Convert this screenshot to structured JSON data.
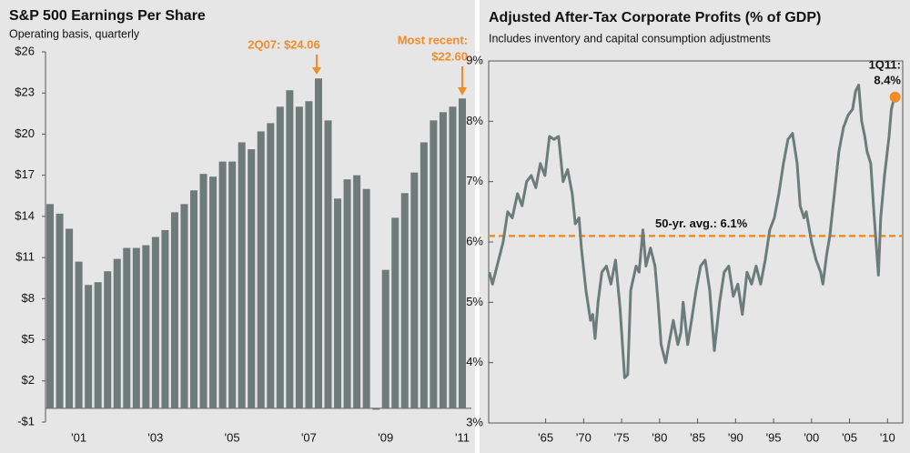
{
  "chart_data": [
    {
      "type": "bar",
      "title": "S&P 500 Earnings Per Share",
      "subtitle": "Operating basis, quarterly",
      "annotations": [
        "2Q07: $24.06",
        "Most recent:",
        "$22.60"
      ],
      "categories": [
        null,
        null,
        null,
        "'01",
        null,
        null,
        null,
        null,
        null,
        null,
        null,
        "'03",
        null,
        null,
        null,
        null,
        null,
        null,
        null,
        "'05",
        null,
        null,
        null,
        null,
        null,
        null,
        null,
        "'07",
        null,
        null,
        null,
        null,
        null,
        null,
        null,
        "'09",
        null,
        null,
        null,
        null,
        null,
        null,
        null,
        "'11"
      ],
      "values": [
        14.9,
        14.2,
        13.1,
        10.7,
        9.0,
        9.2,
        10.0,
        10.9,
        11.7,
        11.7,
        11.9,
        12.5,
        13.0,
        14.3,
        14.9,
        15.9,
        17.1,
        16.9,
        18.0,
        18.0,
        19.4,
        18.9,
        20.2,
        20.8,
        22.0,
        23.2,
        22.0,
        22.4,
        24.06,
        21.0,
        15.3,
        16.7,
        17.0,
        16.0,
        -0.1,
        10.1,
        13.9,
        15.7,
        17.2,
        19.4,
        21.0,
        21.6,
        22.0,
        22.6
      ],
      "color": "#6e7b79",
      "ylim": [
        -1,
        26
      ],
      "yticks": [
        {
          "value": -1,
          "label": "-$1"
        },
        {
          "value": 2,
          "label": "$2"
        },
        {
          "value": 5,
          "label": "$5"
        },
        {
          "value": 8,
          "label": "$8"
        },
        {
          "value": 11,
          "label": "$11"
        },
        {
          "value": 14,
          "label": "$14"
        },
        {
          "value": 17,
          "label": "$17"
        },
        {
          "value": 20,
          "label": "$20"
        },
        {
          "value": 23,
          "label": "$23"
        },
        {
          "value": 26,
          "label": "$26"
        }
      ]
    },
    {
      "type": "line",
      "title": "Adjusted After-Tax Corporate Profits (% of GDP)",
      "subtitle": "Includes inventory and capital consumption adjustments",
      "x": [
        1957.6,
        1958.0,
        1958.6,
        1959.4,
        1960.0,
        1960.6,
        1961.3,
        1961.9,
        1962.5,
        1963.1,
        1963.7,
        1964.3,
        1964.9,
        1965.5,
        1966.1,
        1966.7,
        1967.3,
        1967.9,
        1968.5,
        1968.9,
        1969.4,
        1969.7,
        1970.3,
        1970.9,
        1971.2,
        1971.5,
        1971.9,
        1972.4,
        1973.0,
        1973.6,
        1974.2,
        1974.8,
        1975.4,
        1975.8,
        1976.2,
        1976.9,
        1977.3,
        1977.8,
        1978.2,
        1978.8,
        1979.4,
        1979.8,
        1980.2,
        1980.8,
        1981.2,
        1981.8,
        1982.4,
        1982.8,
        1983.1,
        1983.7,
        1984.2,
        1984.8,
        1985.4,
        1986.0,
        1986.6,
        1987.2,
        1987.9,
        1988.5,
        1989.1,
        1989.7,
        1990.3,
        1990.9,
        1991.5,
        1992.1,
        1992.7,
        1993.3,
        1993.9,
        1994.5,
        1995.1,
        1995.7,
        1996.3,
        1996.9,
        1997.5,
        1998.1,
        1998.5,
        1999.0,
        1999.3,
        2000.0,
        2000.6,
        2001.2,
        2001.5,
        2002.0,
        2002.4,
        2003.0,
        2003.6,
        2004.2,
        2004.8,
        2005.4,
        2005.8,
        2006.2,
        2006.6,
        2007.0,
        2007.3,
        2007.8,
        2008.2,
        2008.8,
        2009.1,
        2009.6,
        2010.2,
        2010.5,
        2010.8,
        2011.0
      ],
      "values": [
        5.5,
        5.3,
        5.6,
        6.0,
        6.5,
        6.4,
        6.8,
        6.6,
        7.0,
        7.1,
        6.9,
        7.3,
        7.1,
        7.75,
        7.7,
        7.75,
        7.0,
        7.2,
        6.8,
        6.3,
        6.4,
        5.9,
        5.2,
        4.7,
        4.8,
        4.4,
        5.0,
        5.5,
        5.6,
        5.3,
        5.7,
        4.9,
        3.75,
        3.8,
        5.2,
        5.6,
        5.5,
        6.2,
        5.6,
        5.9,
        5.6,
        5.0,
        4.3,
        4.0,
        4.3,
        4.7,
        4.3,
        4.5,
        5.0,
        4.3,
        4.7,
        5.2,
        5.6,
        5.7,
        5.2,
        4.2,
        5.0,
        5.5,
        5.6,
        5.1,
        5.3,
        4.8,
        5.5,
        5.3,
        5.6,
        5.3,
        5.7,
        6.2,
        6.4,
        6.8,
        7.3,
        7.7,
        7.8,
        7.3,
        6.6,
        6.4,
        6.5,
        6.0,
        5.7,
        5.5,
        5.3,
        5.8,
        6.1,
        6.8,
        7.5,
        7.9,
        8.1,
        8.2,
        8.5,
        8.6,
        8.0,
        7.75,
        7.5,
        7.3,
        6.5,
        5.45,
        6.4,
        7.1,
        7.75,
        8.2,
        8.35,
        8.4
      ],
      "color": "#6b7c7a",
      "reference_line": {
        "value": 6.1,
        "label": "50-yr. avg.: 6.1%",
        "color": "#f28c28"
      },
      "last_point_label": [
        "1Q11:",
        "8.4%"
      ],
      "last_point_color": "#f28c28",
      "xlim": [
        1957.5,
        2012
      ],
      "xticks": [
        {
          "value": 1965,
          "label": "'65"
        },
        {
          "value": 1970,
          "label": "'70"
        },
        {
          "value": 1975,
          "label": "'75"
        },
        {
          "value": 1980,
          "label": "'80"
        },
        {
          "value": 1985,
          "label": "'85"
        },
        {
          "value": 1990,
          "label": "'90"
        },
        {
          "value": 1995,
          "label": "'95"
        },
        {
          "value": 2000,
          "label": "'00"
        },
        {
          "value": 2005,
          "label": "'05"
        },
        {
          "value": 2010,
          "label": "'10"
        }
      ],
      "ylim": [
        3,
        9
      ],
      "yticks": [
        {
          "value": 3,
          "label": "3%"
        },
        {
          "value": 4,
          "label": "4%"
        },
        {
          "value": 5,
          "label": "5%"
        },
        {
          "value": 6,
          "label": "6%"
        },
        {
          "value": 7,
          "label": "7%"
        },
        {
          "value": 8,
          "label": "8%"
        },
        {
          "value": 9,
          "label": "9%"
        }
      ]
    }
  ]
}
